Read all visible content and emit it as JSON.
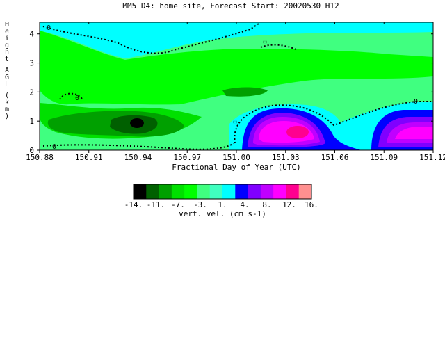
{
  "chart_data": {
    "type": "heatmap",
    "title": "MM5_D4: home site,  Forecast Start: 20020530 H12",
    "xlabel": "Fractional Day of Year (UTC)",
    "ylabel": "Height AGL (km)",
    "xlim": [
      150.88,
      151.12
    ],
    "ylim": [
      0,
      4.4
    ],
    "x_ticks": [
      "150.88",
      "150.91",
      "150.94",
      "150.97",
      "151.00",
      "151.03",
      "151.06",
      "151.09",
      "151.12"
    ],
    "y_ticks": [
      "0",
      "1",
      "2",
      "3",
      "4"
    ],
    "contour_labels": [
      "0",
      "0",
      "0",
      "0",
      "0",
      "0"
    ],
    "colorbar": {
      "label": "vert. vel. (cm s-1)",
      "tick_labels": [
        "-14.",
        "-11.",
        "-7.",
        "-3.",
        "1.",
        "4.",
        "8.",
        "12.",
        "16."
      ],
      "levels": [
        -14,
        -12.2,
        -10.4,
        -8.7,
        -6.9,
        -5.1,
        -3.3,
        -1.6,
        0.2,
        2,
        3.8,
        5.6,
        7.3,
        9.1,
        10.9,
        12.7,
        16
      ],
      "colors": [
        "#000000",
        "#006000",
        "#00a000",
        "#00e000",
        "#00ff00",
        "#40ff80",
        "#40ffc0",
        "#00ffff",
        "#0000ff",
        "#8000ff",
        "#c000ff",
        "#ff00ff",
        "#ff0090",
        "#ff9090"
      ]
    },
    "regions": [
      {
        "color": "#00ff00",
        "note": "broad band of weak downward motion near 1-2 km"
      },
      {
        "color": "#00a000",
        "note": "downdraft core near 150.94 at 0.9 km"
      },
      {
        "color": "#000000",
        "note": "strongest downdraft about -14 cm s-1"
      },
      {
        "color": "#ff00ff",
        "note": "updraft near 151.03 at 0.6 km, about 12 cm s-1"
      },
      {
        "color": "#ff00ff",
        "note": "updraft near 151.11 at 0.6 km"
      }
    ]
  }
}
